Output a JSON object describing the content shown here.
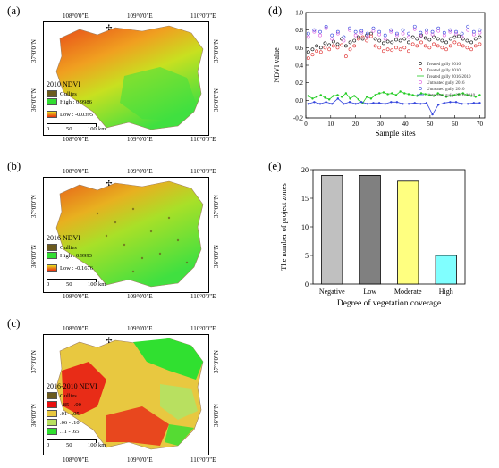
{
  "panels": {
    "a": {
      "label": "(a)",
      "top_coords": [
        "108°0'0\"E",
        "109°0'0\"E",
        "110°0'0\"E"
      ],
      "bottom_coords": [
        "108°0'0\"E",
        "109°0'0\"E",
        "110°0'0\"E"
      ],
      "left_coords": [
        "37°0'0\"N",
        "36°0'0\"N"
      ],
      "right_coords": [
        "37°0'0\"N",
        "36°0'0\"N"
      ],
      "legend_title": "2010 NDVI",
      "legend_items": [
        "Gullies",
        "High : 0.9986",
        "Low : -0.0395"
      ],
      "scale_ticks": [
        "0",
        "50",
        "100"
      ],
      "scale_unit": "km",
      "compass": "N"
    },
    "b": {
      "label": "(b)",
      "top_coords": [
        "108°0'0\"E",
        "109°0'0\"E",
        "110°0'0\"E"
      ],
      "bottom_coords": [
        "108°0'0\"E",
        "109°0'0\"E",
        "110°0'0\"E"
      ],
      "left_coords": [
        "37°0'0\"N",
        "36°0'0\"N"
      ],
      "right_coords": [
        "37°0'0\"N",
        "36°0'0\"N"
      ],
      "legend_title": "2016 NDVI",
      "legend_items": [
        "Gullies",
        "High : 0.9993",
        "Low : -0.1676"
      ],
      "scale_ticks": [
        "0",
        "50",
        "100"
      ],
      "scale_unit": "km",
      "compass": "N"
    },
    "c": {
      "label": "(c)",
      "top_coords": [
        "108°0'0\"E",
        "109°0'0\"E",
        "110°0'0\"E"
      ],
      "bottom_coords": [
        "108°0'0\"E",
        "109°0'0\"E",
        "110°0'0\"E"
      ],
      "left_coords": [
        "37°0'0\"N",
        "36°0'0\"N"
      ],
      "right_coords": [
        "37°0'0\"N",
        "36°0'0\"N"
      ],
      "legend_title": "2016-2010 NDVI",
      "legend_items": [
        "Gullies",
        "-.85 - .00",
        ".01 - .05",
        ".06 - .10",
        ".11 - .65"
      ],
      "scale_ticks": [
        "0",
        "50",
        "100"
      ],
      "scale_unit": "km",
      "compass": "N"
    },
    "d": {
      "label": "(d)"
    },
    "e": {
      "label": "(e)"
    }
  },
  "colors": {
    "gullies": "#6b5a1e",
    "ndvi_high": "#33dd33",
    "ndvi_mid": "#e8e020",
    "ndvi_low": "#e83010",
    "diff_1": "#e81010",
    "diff_2": "#e8c840",
    "diff_3": "#b8e060",
    "diff_4": "#30e030"
  },
  "chart_data": [
    {
      "type": "scatter",
      "xlabel": "Sample sites",
      "ylabel": "NDVI value",
      "xlim": [
        0,
        72
      ],
      "ylim": [
        -0.2,
        1.0
      ],
      "xticks": [
        0,
        10,
        20,
        30,
        40,
        50,
        60,
        70
      ],
      "yticks": [
        -0.2,
        0.0,
        0.2,
        0.4,
        0.6,
        0.8,
        1.0
      ],
      "legend_position": "center-right",
      "series": [
        {
          "name": "Treated gully 2016",
          "marker": "circle",
          "color": "#000000",
          "values": [
            0.55,
            0.58,
            0.62,
            0.6,
            0.65,
            0.63,
            0.67,
            0.64,
            0.7,
            0.62,
            0.66,
            0.68,
            0.72,
            0.7,
            0.74,
            0.76,
            0.7,
            0.68,
            0.65,
            0.67,
            0.66,
            0.69,
            0.68,
            0.7,
            0.66,
            0.72,
            0.7,
            0.74,
            0.71,
            0.69,
            0.72,
            0.7,
            0.68,
            0.66,
            0.7,
            0.72,
            0.73,
            0.7,
            0.68,
            0.66,
            0.7,
            0.72
          ]
        },
        {
          "name": "Treated gully 2010",
          "marker": "circle",
          "color": "#dd2222",
          "values": [
            0.48,
            0.52,
            0.56,
            0.55,
            0.6,
            0.58,
            0.62,
            0.6,
            0.63,
            0.5,
            0.58,
            0.62,
            0.7,
            0.72,
            0.68,
            0.73,
            0.62,
            0.6,
            0.56,
            0.58,
            0.57,
            0.6,
            0.58,
            0.6,
            0.56,
            0.64,
            0.62,
            0.66,
            0.62,
            0.6,
            0.64,
            0.62,
            0.6,
            0.58,
            0.62,
            0.66,
            0.64,
            0.62,
            0.6,
            0.58,
            0.62,
            0.64
          ]
        },
        {
          "name": "Treated gully 2016-2010",
          "marker": "line",
          "color": "#22cc22",
          "values": [
            0.05,
            0.02,
            0.04,
            0.06,
            0.03,
            0.01,
            0.05,
            0.06,
            0.04,
            0.08,
            0.02,
            0.05,
            0.01,
            -0.03,
            0.04,
            0.02,
            0.06,
            0.08,
            0.09,
            0.07,
            0.08,
            0.06,
            0.1,
            0.08,
            0.07,
            0.06,
            0.05,
            0.08,
            0.07,
            0.06,
            0.05,
            0.08,
            0.06,
            0.04,
            0.05,
            0.06,
            0.07,
            0.08,
            0.06,
            0.05,
            0.04,
            0.06
          ]
        },
        {
          "name": "Untreated gully 2016",
          "marker": "circle",
          "color": "#dd55dd",
          "values": [
            0.72,
            0.78,
            0.74,
            0.82,
            0.7,
            0.76,
            0.68,
            0.8,
            0.74,
            0.77,
            0.72,
            0.79,
            0.75,
            0.7,
            0.78,
            0.74,
            0.76,
            0.72,
            0.81,
            0.73,
            0.77,
            0.75,
            0.79,
            0.74,
            0.78,
            0.76,
            0.72,
            0.8,
            0.75,
            0.77
          ]
        },
        {
          "name": "Untreated gully 2010",
          "marker": "circle",
          "color": "#3344dd",
          "values": [
            0.76,
            0.8,
            0.78,
            0.84,
            0.74,
            0.78,
            0.72,
            0.82,
            0.78,
            0.79,
            0.76,
            0.82,
            0.78,
            0.74,
            0.8,
            0.76,
            0.8,
            0.76,
            0.84,
            0.77,
            0.8,
            0.78,
            0.82,
            0.77,
            0.8,
            0.78,
            0.76,
            0.84,
            0.78,
            0.8
          ]
        },
        {
          "name": "Untreated gully 2016-2010",
          "marker": "line",
          "color": "#3344dd",
          "values": [
            -0.04,
            -0.02,
            -0.04,
            -0.02,
            -0.04,
            0.02,
            -0.04,
            -0.02,
            -0.04,
            -0.02,
            -0.04,
            -0.03,
            -0.03,
            -0.04,
            -0.02,
            -0.02,
            -0.04,
            -0.04,
            -0.03,
            -0.04,
            -0.03,
            -0.16,
            -0.05,
            -0.03,
            -0.02,
            -0.02,
            -0.04,
            -0.04,
            -0.03,
            -0.03
          ]
        }
      ]
    },
    {
      "type": "bar",
      "xlabel": "Degree of vegetation coverage",
      "ylabel": "The number of project zones",
      "categories": [
        "Negative",
        "Low",
        "Moderate",
        "High"
      ],
      "values": [
        19,
        19,
        18,
        5
      ],
      "colors": [
        "#c0c0c0",
        "#808080",
        "#ffff80",
        "#80ffff"
      ],
      "ylim": [
        0,
        20
      ],
      "yticks": [
        0,
        5,
        10,
        15,
        20
      ]
    }
  ]
}
